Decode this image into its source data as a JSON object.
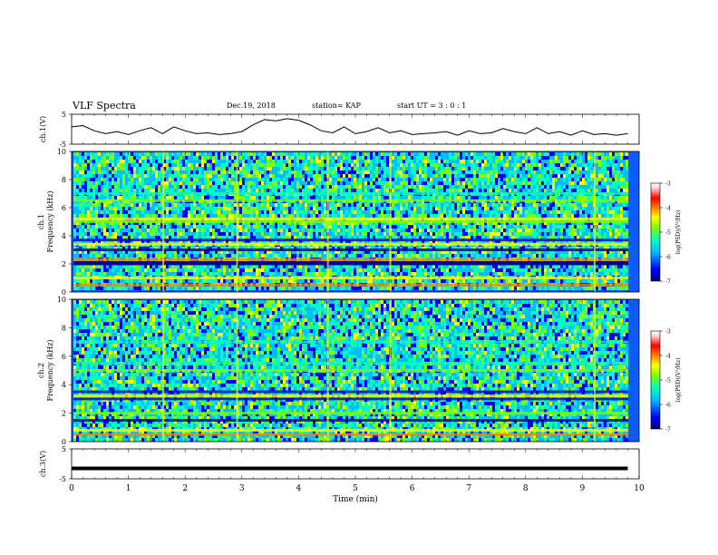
{
  "header": {
    "title": "VLF Spectra",
    "date": "Dec.19, 2018",
    "station": "station= KAP",
    "start": "start  UT =   3 : 0  : 1"
  },
  "chart_data": [
    {
      "type": "line",
      "name": "ch1-voltage",
      "ylabel": "ch.1(V)",
      "ylim": [
        -5,
        5
      ],
      "yticks": [
        "5",
        "-5"
      ],
      "xlim": [
        0,
        10
      ],
      "x": [
        0,
        0.2,
        0.4,
        0.6,
        0.8,
        1.0,
        1.2,
        1.4,
        1.6,
        1.8,
        2.0,
        2.2,
        2.4,
        2.6,
        2.8,
        3.0,
        3.2,
        3.4,
        3.6,
        3.8,
        4.0,
        4.2,
        4.4,
        4.6,
        4.8,
        5.0,
        5.2,
        5.4,
        5.6,
        5.8,
        6.0,
        6.2,
        6.4,
        6.6,
        6.8,
        7.0,
        7.2,
        7.4,
        7.6,
        7.8,
        8.0,
        8.2,
        8.4,
        8.6,
        8.8,
        9.0,
        9.2,
        9.4,
        9.6,
        9.8
      ],
      "values": [
        0.8,
        1.2,
        -0.5,
        -1.5,
        -0.8,
        -1.8,
        -0.5,
        0.5,
        -1.5,
        0.8,
        -0.5,
        -1.5,
        -1.2,
        -1.8,
        -1.5,
        -0.8,
        1.5,
        3.2,
        2.8,
        3.5,
        3.0,
        1.5,
        -0.5,
        -1.2,
        0.8,
        -1.5,
        -0.8,
        0.5,
        -1.2,
        -0.5,
        -1.8,
        -1.5,
        -1.2,
        -0.8,
        -2.0,
        -0.5,
        -1.5,
        -1.2,
        0.2,
        -0.8,
        -1.5,
        0.5,
        -1.5,
        -0.8,
        -2.0,
        -0.5,
        -1.8,
        -1.5,
        -2.0,
        -1.5
      ]
    },
    {
      "type": "heatmap",
      "name": "ch1-spectrogram",
      "ylabel": "ch.1 Frequency (kHz)",
      "xlim": [
        0,
        10
      ],
      "ylim": [
        0,
        10
      ],
      "yticks": [
        "0",
        "2",
        "4",
        "6",
        "8",
        "10"
      ],
      "colorbar": {
        "label": "log(PSD)(V²/Hz)",
        "range": [
          -7,
          -3
        ],
        "ticks": [
          "-3",
          "-4",
          "-5",
          "-6",
          "-7"
        ]
      }
    },
    {
      "type": "heatmap",
      "name": "ch2-spectrogram",
      "ylabel": "ch.2 Frequency (kHz)",
      "xlim": [
        0,
        10
      ],
      "ylim": [
        0,
        10
      ],
      "yticks": [
        "0",
        "2",
        "4",
        "6",
        "8",
        "10"
      ],
      "colorbar": {
        "label": "log(PSD)(V²/Hz)",
        "range": [
          -7,
          -3
        ],
        "ticks": [
          "-3",
          "-4",
          "-5",
          "-6",
          "-7"
        ]
      }
    },
    {
      "type": "line",
      "name": "ch3-voltage",
      "ylabel": "ch.3(V)",
      "ylim": [
        -5,
        5
      ],
      "yticks": [
        "5",
        "-5"
      ],
      "xlim": [
        0,
        10
      ],
      "x": [
        0,
        9.8
      ],
      "values": [
        -1.5,
        -1.5
      ]
    }
  ],
  "xaxis": {
    "label": "Time  (min)",
    "ticks": [
      "0",
      "1",
      "2",
      "3",
      "4",
      "5",
      "6",
      "7",
      "8",
      "9",
      "10"
    ]
  },
  "colors": {
    "background": "#ffffff",
    "axis": "#000000",
    "colormap": [
      "#00007f",
      "#0000ff",
      "#00bfff",
      "#00ffbf",
      "#80ff00",
      "#ffff00",
      "#ff8000",
      "#ff0000",
      "#ffd0d0",
      "#ffffff"
    ]
  }
}
